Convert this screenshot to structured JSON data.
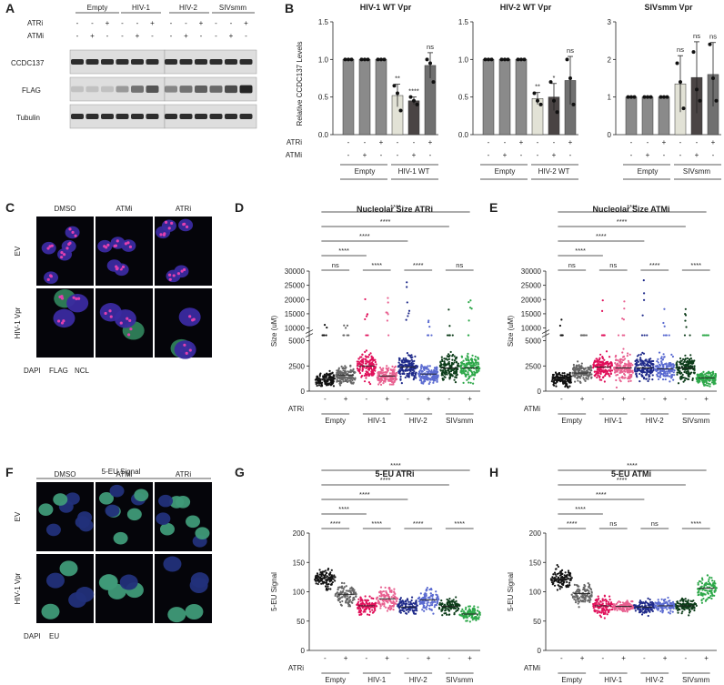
{
  "panels": {
    "A": {
      "label": "A",
      "groups": [
        "Empty",
        "HIV-1",
        "HIV-2",
        "SIVsmm"
      ],
      "row_labels": [
        "ATRi",
        "ATMi"
      ],
      "atri_signs": [
        "-",
        "-",
        "+",
        "-",
        "-",
        "+",
        "-",
        "-",
        "+",
        "-",
        "-",
        "+"
      ],
      "atmi_signs": [
        "-",
        "+",
        "-",
        "-",
        "+",
        "-",
        "-",
        "+",
        "-",
        "-",
        "+",
        "-"
      ],
      "blots": [
        "CCDC137",
        "FLAG",
        "Tubulin"
      ],
      "blot_colors": {
        "membrane": "#dedede",
        "band": "#1a1a1a"
      },
      "flag_intensity": [
        0.15,
        0.15,
        0.15,
        0.35,
        0.55,
        0.7,
        0.45,
        0.55,
        0.65,
        0.6,
        0.75,
        0.95
      ]
    },
    "B": {
      "label": "B",
      "ylabel": "Relative CCDC137 Levels",
      "row_labels": [
        "ATRi",
        "ATMi"
      ],
      "atri_signs": [
        "-",
        "-",
        "+",
        "-",
        "-",
        "+"
      ],
      "atmi_signs": [
        "-",
        "+",
        "-",
        "-",
        "+",
        "-"
      ],
      "bar_colors": [
        "#8a8a8a",
        "#8a8a8a",
        "#8a8a8a",
        "#e2e2d6",
        "#4a4444",
        "#707070"
      ]
    },
    "C": {
      "label": "C",
      "columns": [
        "DMSO",
        "ATMi",
        "ATRi"
      ],
      "rows": [
        "EV",
        "HIV-1 Vpr"
      ],
      "legend": [
        {
          "text": "DAPI",
          "color": "#2b2bb0"
        },
        {
          "text": "FLAG",
          "color": "#1a7a1a"
        },
        {
          "text": "NCL",
          "color": "#d8208a"
        }
      ]
    },
    "D": {
      "label": "D",
      "title": "Nucleolar Size ATRi",
      "ylabel": "Size (uM)",
      "treatment": "ATRi",
      "sig": [
        "ns",
        "****",
        "****",
        "ns"
      ],
      "brackets": [
        "****",
        "****",
        "****",
        "****"
      ]
    },
    "E": {
      "label": "E",
      "title": "Nucleolar Size ATMi",
      "ylabel": "Size (uM)",
      "treatment": "ATMi",
      "sig": [
        "ns",
        "ns",
        "****",
        "****"
      ],
      "brackets": [
        "****",
        "****",
        "****",
        "****"
      ]
    },
    "F": {
      "label": "F",
      "header": "5-EU Signal",
      "columns": [
        "DMSO",
        "ATMi",
        "ATRi"
      ],
      "rows": [
        "EV",
        "HIV-1 Vpr"
      ],
      "legend": [
        {
          "text": "DAPI",
          "color": "#2b2bb0"
        },
        {
          "text": "EU",
          "color": "#1a7a1a"
        }
      ]
    },
    "G": {
      "label": "G",
      "title": "5-EU ATRi",
      "ylabel": "5-EU Signal",
      "treatment": "ATRi",
      "sig": [
        "****",
        "****",
        "****",
        "****"
      ],
      "brackets": [
        "****",
        "****",
        "****",
        "****"
      ]
    },
    "H": {
      "label": "H",
      "title": "5-EU ATMi",
      "ylabel": "5-EU Signal",
      "treatment": "ATMi",
      "sig": [
        "****",
        "ns",
        "ns",
        "****"
      ],
      "brackets": [
        "****",
        "****",
        "****",
        "****"
      ]
    }
  },
  "group_labels": [
    "Empty",
    "HIV-1",
    "HIV-2",
    "SIVsmm"
  ],
  "point_colors": [
    "#111111",
    "#666666",
    "#e0105a",
    "#e86090",
    "#1f2a8a",
    "#5a6ad0",
    "#0d3d1a",
    "#2ea84a"
  ],
  "chart_data": [
    {
      "type": "bar",
      "title": "HIV-1 WT Vpr",
      "ylabel": "Relative CCDC137 Levels",
      "ylim": [
        0,
        1.5
      ],
      "yticks": [
        0.0,
        0.5,
        1.0,
        1.5
      ],
      "group_labels": [
        "Empty",
        "HIV-1 WT"
      ],
      "values": [
        1.0,
        1.0,
        1.0,
        0.52,
        0.45,
        0.92
      ],
      "errors": [
        0,
        0,
        0,
        0.15,
        0.05,
        0.17
      ],
      "points": [
        [
          1,
          1,
          1
        ],
        [
          1,
          1,
          1
        ],
        [
          1,
          1,
          1
        ],
        [
          0.65,
          0.55,
          0.32
        ],
        [
          0.5,
          0.45,
          0.4
        ],
        [
          1.0,
          0.95,
          0.7
        ]
      ],
      "sig": [
        "",
        "",
        "",
        "**",
        "****",
        "ns"
      ]
    },
    {
      "type": "bar",
      "title": "HIV-2 WT Vpr",
      "ylim": [
        0,
        1.5
      ],
      "yticks": [
        0.0,
        0.5,
        1.0,
        1.5
      ],
      "group_labels": [
        "Empty",
        "HIV-2 WT"
      ],
      "values": [
        1.0,
        1.0,
        1.0,
        0.48,
        0.5,
        0.72
      ],
      "errors": [
        0,
        0,
        0,
        0.08,
        0.18,
        0.32
      ],
      "points": [
        [
          1,
          1,
          1
        ],
        [
          1,
          1,
          1
        ],
        [
          1,
          1,
          1
        ],
        [
          0.55,
          0.45,
          0.4
        ],
        [
          0.7,
          0.45,
          0.3
        ],
        [
          1.0,
          0.75,
          0.4
        ]
      ],
      "sig": [
        "",
        "",
        "",
        "**",
        "*",
        "ns"
      ]
    },
    {
      "type": "bar",
      "title": "SIVsmm Vpr",
      "ylim": [
        0,
        3
      ],
      "yticks": [
        0,
        1,
        2,
        3
      ],
      "group_labels": [
        "Empty",
        "SIVsmm"
      ],
      "values": [
        1.0,
        1.0,
        1.0,
        1.35,
        1.52,
        1.6
      ],
      "errors": [
        0,
        0,
        0,
        0.75,
        0.95,
        0.85
      ],
      "points": [
        [
          1,
          1,
          1
        ],
        [
          1,
          1,
          1
        ],
        [
          1,
          1,
          1
        ],
        [
          1.9,
          1.4,
          0.7
        ],
        [
          2.2,
          1.2,
          0.9
        ],
        [
          2.4,
          1.5,
          0.9
        ]
      ],
      "sig": [
        "",
        "",
        "",
        "ns",
        "ns",
        "ns"
      ]
    },
    {
      "type": "scatter",
      "title": "Nucleolar Size ATRi",
      "ylabel": "Size (uM)",
      "ytick_labels_lower": [
        "0",
        "2500",
        "5000"
      ],
      "ytick_labels_upper": [
        "10000",
        "15000",
        "20000",
        "25000",
        "30000"
      ],
      "group_labels": [
        "Empty",
        "HIV-1",
        "HIV-2",
        "SIVsmm"
      ],
      "means": [
        1200,
        1600,
        2500,
        1500,
        2400,
        1700,
        2300,
        2300
      ],
      "max": [
        12000,
        11000,
        22000,
        21000,
        27000,
        14000,
        18000,
        21000
      ]
    },
    {
      "type": "scatter",
      "title": "Nucleolar Size ATMi",
      "ylabel": "Size (uM)",
      "ytick_labels_lower": [
        "0",
        "2500",
        "5000"
      ],
      "ytick_labels_upper": [
        "10000",
        "15000",
        "20000",
        "25000",
        "30000"
      ],
      "group_labels": [
        "Empty",
        "HIV-1",
        "HIV-2",
        "SIVsmm"
      ],
      "means": [
        1200,
        1800,
        2400,
        2300,
        2300,
        2200,
        2300,
        1300
      ],
      "max": [
        14000,
        7500,
        22000,
        21000,
        28000,
        20000,
        17000,
        10000
      ]
    },
    {
      "type": "scatter",
      "title": "5-EU ATRi",
      "ylabel": "5-EU Signal",
      "ylim": [
        0,
        200
      ],
      "yticks": [
        0,
        50,
        100,
        150,
        200
      ],
      "group_labels": [
        "Empty",
        "HIV-1",
        "HIV-2",
        "SIVsmm"
      ],
      "means": [
        122,
        95,
        76,
        88,
        74,
        86,
        75,
        62
      ],
      "spread": [
        [
          90,
          175
        ],
        [
          60,
          160
        ],
        [
          48,
          130
        ],
        [
          50,
          160
        ],
        [
          40,
          110
        ],
        [
          55,
          150
        ],
        [
          45,
          110
        ],
        [
          35,
          100
        ]
      ]
    },
    {
      "type": "scatter",
      "title": "5-EU ATMi",
      "ylabel": "5-EU Signal",
      "ylim": [
        0,
        200
      ],
      "yticks": [
        0,
        50,
        100,
        150,
        200
      ],
      "group_labels": [
        "Empty",
        "HIV-1",
        "HIV-2",
        "SIVsmm"
      ],
      "means": [
        122,
        97,
        76,
        75,
        74,
        76,
        76,
        106
      ],
      "spread": [
        [
          90,
          175
        ],
        [
          60,
          160
        ],
        [
          45,
          130
        ],
        [
          55,
          100
        ],
        [
          40,
          110
        ],
        [
          50,
          110
        ],
        [
          45,
          110
        ],
        [
          65,
          175
        ]
      ]
    }
  ]
}
